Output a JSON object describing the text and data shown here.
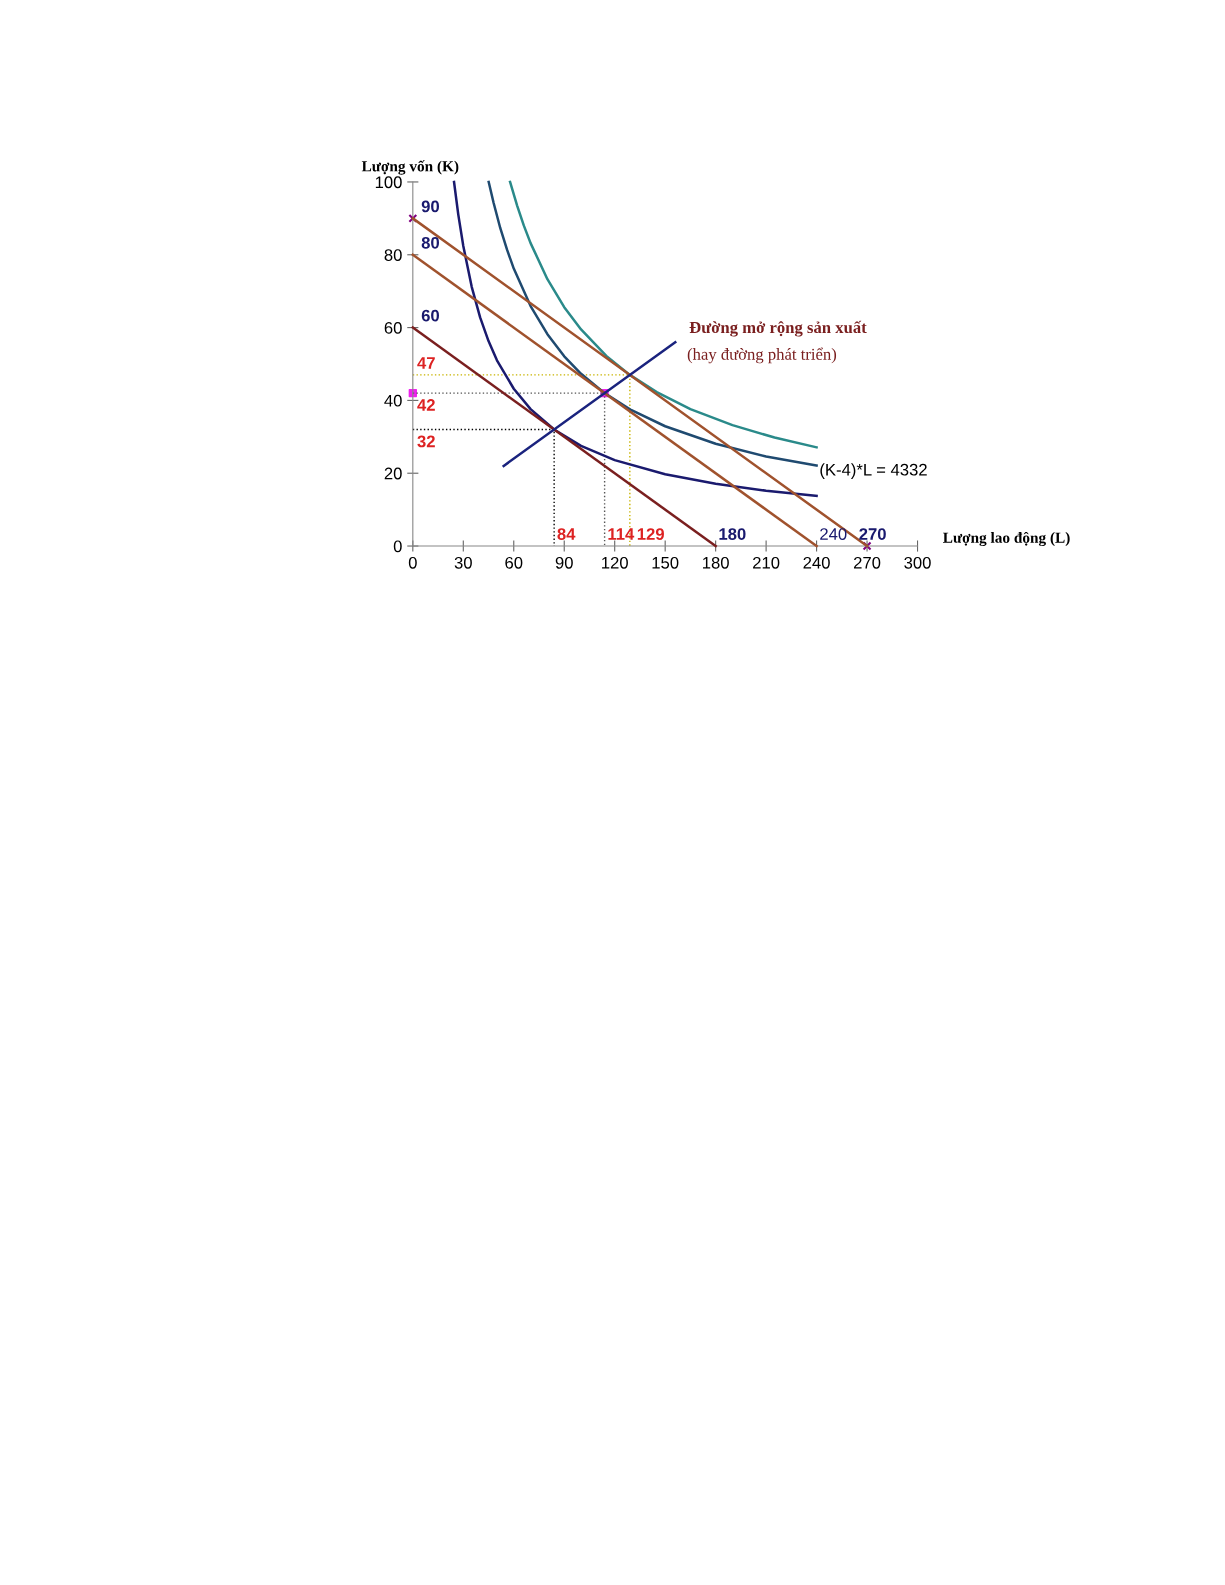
{
  "chart_data": {
    "type": "line",
    "xlabel": "Lượng lao động (L)",
    "ylabel": "Lượng vốn (K)",
    "xlim": [
      0,
      300
    ],
    "ylim": [
      0,
      100
    ],
    "xticks": [
      0,
      30,
      60,
      90,
      120,
      150,
      180,
      210,
      240,
      270,
      300
    ],
    "yticks": [
      0,
      20,
      40,
      60,
      80,
      100
    ],
    "grid": false,
    "legend": false,
    "series": [
      {
        "color": "#1a1a6e",
        "x": [
          24.5,
          27,
          30,
          35,
          40,
          45,
          50,
          60,
          70,
          84,
          100,
          120,
          150,
          180,
          210,
          240
        ],
        "values": [
          100,
          91.1,
          82.4,
          71.2,
          62.8,
          56.3,
          51.0,
          43.2,
          37.6,
          32,
          27.5,
          23.6,
          19.7,
          17.1,
          15.2,
          13.8
        ]
      },
      {
        "color": "#1f4a70",
        "x": [
          45.1,
          48,
          52,
          56,
          60,
          70,
          80,
          90,
          100,
          114,
          130,
          150,
          180,
          210,
          240
        ],
        "values": [
          100,
          94.3,
          87.3,
          81.4,
          76.2,
          65.9,
          58.2,
          52.1,
          47.3,
          42,
          37.3,
          32.9,
          28.1,
          24.6,
          22.1
        ]
      },
      {
        "color": "#2a8a8a",
        "x": [
          57.8,
          62,
          66,
          70,
          80,
          90,
          100,
          115,
          129,
          145,
          165,
          190,
          215,
          240
        ],
        "values": [
          100,
          93.5,
          88.0,
          83.2,
          73.3,
          65.6,
          59.5,
          52.2,
          47,
          42.3,
          37.6,
          33.2,
          29.8,
          27.1
        ]
      },
      {
        "color": "#7a1f1f",
        "x": [
          0,
          180
        ],
        "values": [
          60,
          0
        ]
      },
      {
        "color": "#a0522d",
        "x": [
          0,
          240
        ],
        "values": [
          80,
          0
        ]
      },
      {
        "color": "#a0522d",
        "x": [
          0,
          270
        ],
        "values": [
          90,
          0
        ]
      },
      {
        "color": "#1a237e",
        "x": [
          54,
          156
        ],
        "values": [
          22,
          56
        ]
      },
      {
        "color": "#000000",
        "line_style": "dotted",
        "x": [
          0,
          84,
          84
        ],
        "values": [
          32,
          32,
          0
        ]
      },
      {
        "color": "#555555",
        "line_style": "dotted",
        "x": [
          0,
          114,
          114
        ],
        "values": [
          42,
          42,
          0
        ]
      },
      {
        "color": "#c8b400",
        "line_style": "dotted",
        "x": [
          0,
          129,
          129
        ],
        "values": [
          47,
          47,
          0
        ]
      },
      {
        "type": "scatter",
        "marker": "cross",
        "color": "#800080",
        "x": [
          0,
          270
        ],
        "values": [
          90,
          0
        ]
      },
      {
        "type": "scatter",
        "marker": "square",
        "color": "#ee22ee",
        "x": [
          0,
          114
        ],
        "values": [
          42,
          42
        ]
      }
    ],
    "annotations": [
      {
        "text": "90",
        "x": 0,
        "y": 90
      },
      {
        "text": "80",
        "x": 0,
        "y": 80
      },
      {
        "text": "60",
        "x": 0,
        "y": 60
      },
      {
        "text": "47",
        "x": 0,
        "y": 47
      },
      {
        "text": "42",
        "x": 0,
        "y": 42
      },
      {
        "text": "32",
        "x": 0,
        "y": 32
      },
      {
        "text": "84",
        "x": 84,
        "y": 0
      },
      {
        "text": "114",
        "x": 114,
        "y": 0
      },
      {
        "text": "129",
        "x": 129,
        "y": 0
      },
      {
        "text": "180",
        "x": 180,
        "y": 0
      },
      {
        "text": "240",
        "x": 240,
        "y": 0
      },
      {
        "text": "270",
        "x": 270,
        "y": 0
      },
      {
        "text": "(K-4)*L = 4332",
        "x": 240,
        "y": 22.1
      },
      {
        "text": "Đường mở rộng sản xuất",
        "x": 156,
        "y": 56
      },
      "(hay đường phát triển)"
    ]
  }
}
